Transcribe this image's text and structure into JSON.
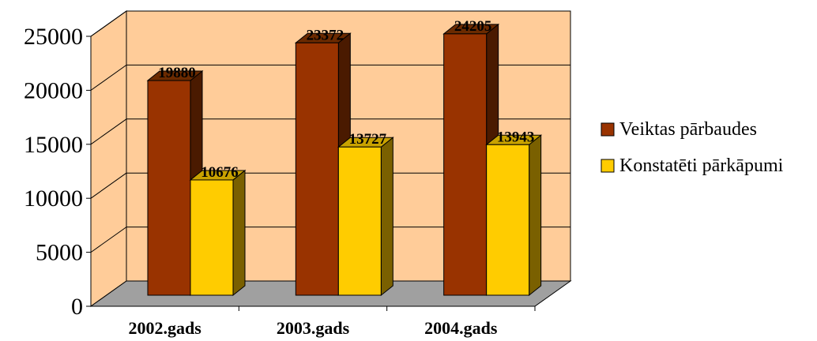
{
  "chart_data": {
    "type": "bar",
    "style": "3d-clustered-column",
    "categories": [
      "2002.gads",
      "2003.gads",
      "2004.gads"
    ],
    "series": [
      {
        "name": "Veiktas pārbaudes",
        "values": [
          19880,
          23372,
          24205
        ],
        "color": "#993300",
        "side_color": "#4a1a00",
        "top_color": "#6b2a00"
      },
      {
        "name": "Konstatēti pārkāpumi",
        "values": [
          10676,
          13727,
          13943
        ],
        "color": "#ffcc00",
        "side_color": "#7a6000",
        "top_color": "#c9a200"
      }
    ],
    "y_ticks": [
      "0",
      "5000",
      "10000",
      "15000",
      "20000",
      "25000"
    ],
    "ylim": [
      0,
      25000
    ],
    "grid": true,
    "legend_position": "right",
    "wall_color": "#ffcc99",
    "floor_color": "#a0a0a0"
  }
}
